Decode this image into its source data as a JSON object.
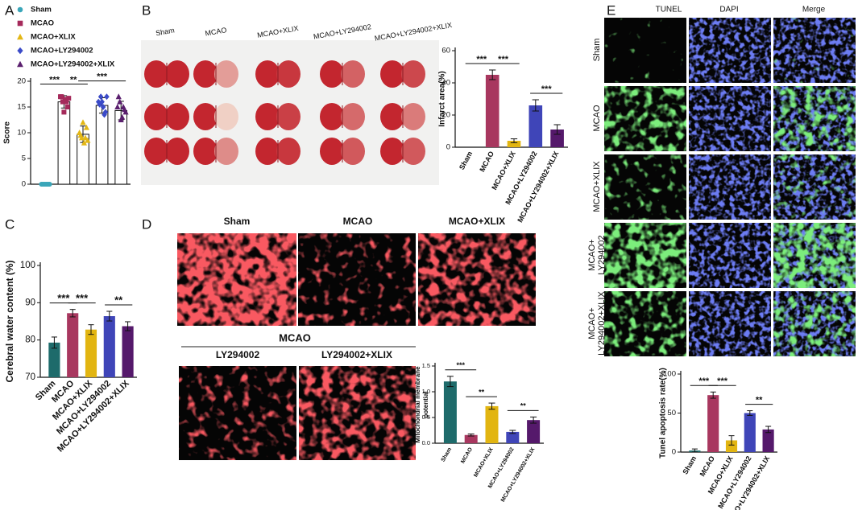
{
  "panel_labels": [
    "A",
    "B",
    "C",
    "D",
    "E"
  ],
  "figure_b": {
    "columns": [
      "Sham",
      "MCAO",
      "MCAO+XLIX",
      "MCAO+LY294002",
      "MCAO+LY294002+XLIX"
    ]
  },
  "figure_d": {
    "columns": [
      "Sham",
      "MCAO",
      "MCAO+XLIX"
    ],
    "group_label": "MCAO",
    "group_columns": [
      "LY294002",
      "LY294002+XLIX"
    ]
  },
  "figure_e": {
    "columns": [
      "TUNEL",
      "DAPI",
      "Merge"
    ],
    "rows": [
      [
        "Sham"
      ],
      [
        "MCAO"
      ],
      [
        "MCAO+XLIX"
      ],
      [
        "MCAO+",
        "LY294002"
      ],
      [
        "MCAO+",
        "LY294002+XLIX"
      ]
    ]
  },
  "chart_data": [
    {
      "type": "bar",
      "y_label": "Score",
      "categories": [
        "Sham",
        "MCAO",
        "MCAO+XLIX",
        "MCAO+LY294002",
        "MCAO+LY294002+XLIX"
      ],
      "values": [
        0,
        16,
        9.7,
        15.3,
        14.3
      ],
      "errors": [
        0.2,
        1.2,
        1.6,
        1.5,
        1.8
      ],
      "points": [
        [
          0,
          0,
          0,
          0,
          0,
          0,
          0,
          0
        ],
        [
          17,
          16,
          16.5,
          15,
          17,
          14,
          16,
          16.7
        ],
        [
          10,
          9,
          8,
          11,
          9.5,
          12,
          9,
          8.5
        ],
        [
          16,
          17,
          15,
          14,
          15.5,
          16,
          13.5,
          17
        ],
        [
          15,
          16,
          13,
          14.5,
          17,
          12.5,
          15,
          14
        ]
      ],
      "markers": [
        "circle",
        "square",
        "triangle",
        "diamond",
        "triangle"
      ],
      "colors": [
        "#3aa6b9",
        "#a52a5b",
        "#e3b715",
        "#3b4bc8",
        "#5a1f6e"
      ],
      "bar_fill": "#ffffff",
      "legend": "top-left",
      "ylim": [
        0,
        20
      ],
      "yticks": [
        0,
        5,
        10,
        15,
        20
      ],
      "annotations": [
        {
          "text": "***",
          "between": [
            "Sham",
            "MCAO"
          ]
        },
        {
          "text": "**",
          "between": [
            "MCAO",
            "MCAO+XLIX"
          ]
        },
        {
          "text": "***",
          "between": [
            "MCAO+XLIX",
            "MCAO+LY294002+XLIX"
          ]
        }
      ]
    },
    {
      "type": "bar",
      "y_label": "Infarct area(%)",
      "categories": [
        "Sham",
        "MCAO",
        "MCAO+XLIX",
        "MCAO+LY294002",
        "MCAO+LY294002+XLIX"
      ],
      "values": [
        0,
        45,
        4,
        26,
        11
      ],
      "errors": [
        0,
        3,
        1.2,
        3.5,
        3
      ],
      "colors": [
        "#1e6b6b",
        "#a8375f",
        "#e2b511",
        "#3f45b8",
        "#55196b"
      ],
      "ylim": [
        0,
        60
      ],
      "yticks": [
        0,
        20,
        40,
        60
      ],
      "annotations": [
        {
          "text": "***",
          "between": [
            "Sham",
            "MCAO"
          ]
        },
        {
          "text": "***",
          "between": [
            "MCAO",
            "MCAO+XLIX"
          ]
        },
        {
          "text": "***",
          "between": [
            "MCAO+LY294002",
            "MCAO+LY294002+XLIX"
          ]
        }
      ]
    },
    {
      "type": "bar",
      "y_label": "Cerebral water content (%)",
      "categories": [
        "Sham",
        "MCAO",
        "MCAO+XLIX",
        "MCAO+LY294002",
        "MCAO+LY294002+XLIX"
      ],
      "values": [
        79.3,
        87.2,
        82.8,
        86.4,
        83.7
      ],
      "errors": [
        1.5,
        1,
        1.3,
        1.3,
        1.2
      ],
      "colors": [
        "#1e6b6b",
        "#a8375f",
        "#e2b511",
        "#3f45b8",
        "#55196b"
      ],
      "ylim": [
        70,
        100
      ],
      "yticks": [
        70,
        80,
        90,
        100
      ],
      "annotations": [
        {
          "text": "***",
          "between": [
            "Sham",
            "MCAO"
          ]
        },
        {
          "text": "***",
          "between": [
            "MCAO",
            "MCAO+XLIX"
          ]
        },
        {
          "text": "**",
          "between": [
            "MCAO+LY294002",
            "MCAO+LY294002+XLIX"
          ]
        }
      ]
    },
    {
      "type": "bar",
      "y_label": [
        "Mitochondrial membrane",
        "potential"
      ],
      "categories": [
        "Sham",
        "MCAO",
        "MCAO+XLIX",
        "MCAO+LY294002",
        "MCAO+LY294002+XLIX"
      ],
      "values": [
        1.2,
        0.16,
        0.72,
        0.22,
        0.45
      ],
      "errors": [
        0.1,
        0.02,
        0.06,
        0.03,
        0.06
      ],
      "colors": [
        "#1e6b6b",
        "#a8375f",
        "#e2b511",
        "#3f45b8",
        "#55196b"
      ],
      "ylim": [
        0,
        1.5
      ],
      "yticks": [
        {
          "value": 0,
          "label": "0.0"
        },
        0.5,
        {
          "value": 1,
          "label": "1.0"
        },
        1.5
      ],
      "annotations": [
        {
          "text": "***",
          "between": [
            "Sham",
            "MCAO"
          ]
        },
        {
          "text": "**",
          "between": [
            "MCAO",
            "MCAO+XLIX"
          ]
        },
        {
          "text": "**",
          "between": [
            "MCAO+LY294002",
            "MCAO+LY294002+XLIX"
          ]
        }
      ]
    },
    {
      "type": "bar",
      "y_label": "Tunel apoptosis rate(%)",
      "categories": [
        "Sham",
        "MCAO",
        "MCAO+XLIX",
        "MCAO+LY294002",
        "MCAO+LY294002+XLIX"
      ],
      "values": [
        2,
        73,
        15,
        50,
        29
      ],
      "errors": [
        2,
        4,
        6,
        3,
        4
      ],
      "colors": [
        "#1e6b6b",
        "#a8375f",
        "#e2b511",
        "#3f45b8",
        "#55196b"
      ],
      "ylim": [
        0,
        100
      ],
      "yticks": [
        0,
        50,
        100
      ],
      "annotations": [
        {
          "text": "***",
          "between": [
            "Sham",
            "MCAO"
          ]
        },
        {
          "text": "***",
          "between": [
            "MCAO",
            "MCAO+XLIX"
          ]
        },
        {
          "text": "**",
          "between": [
            "MCAO+LY294002",
            "MCAO+LY294002+XLIX"
          ]
        }
      ]
    }
  ]
}
